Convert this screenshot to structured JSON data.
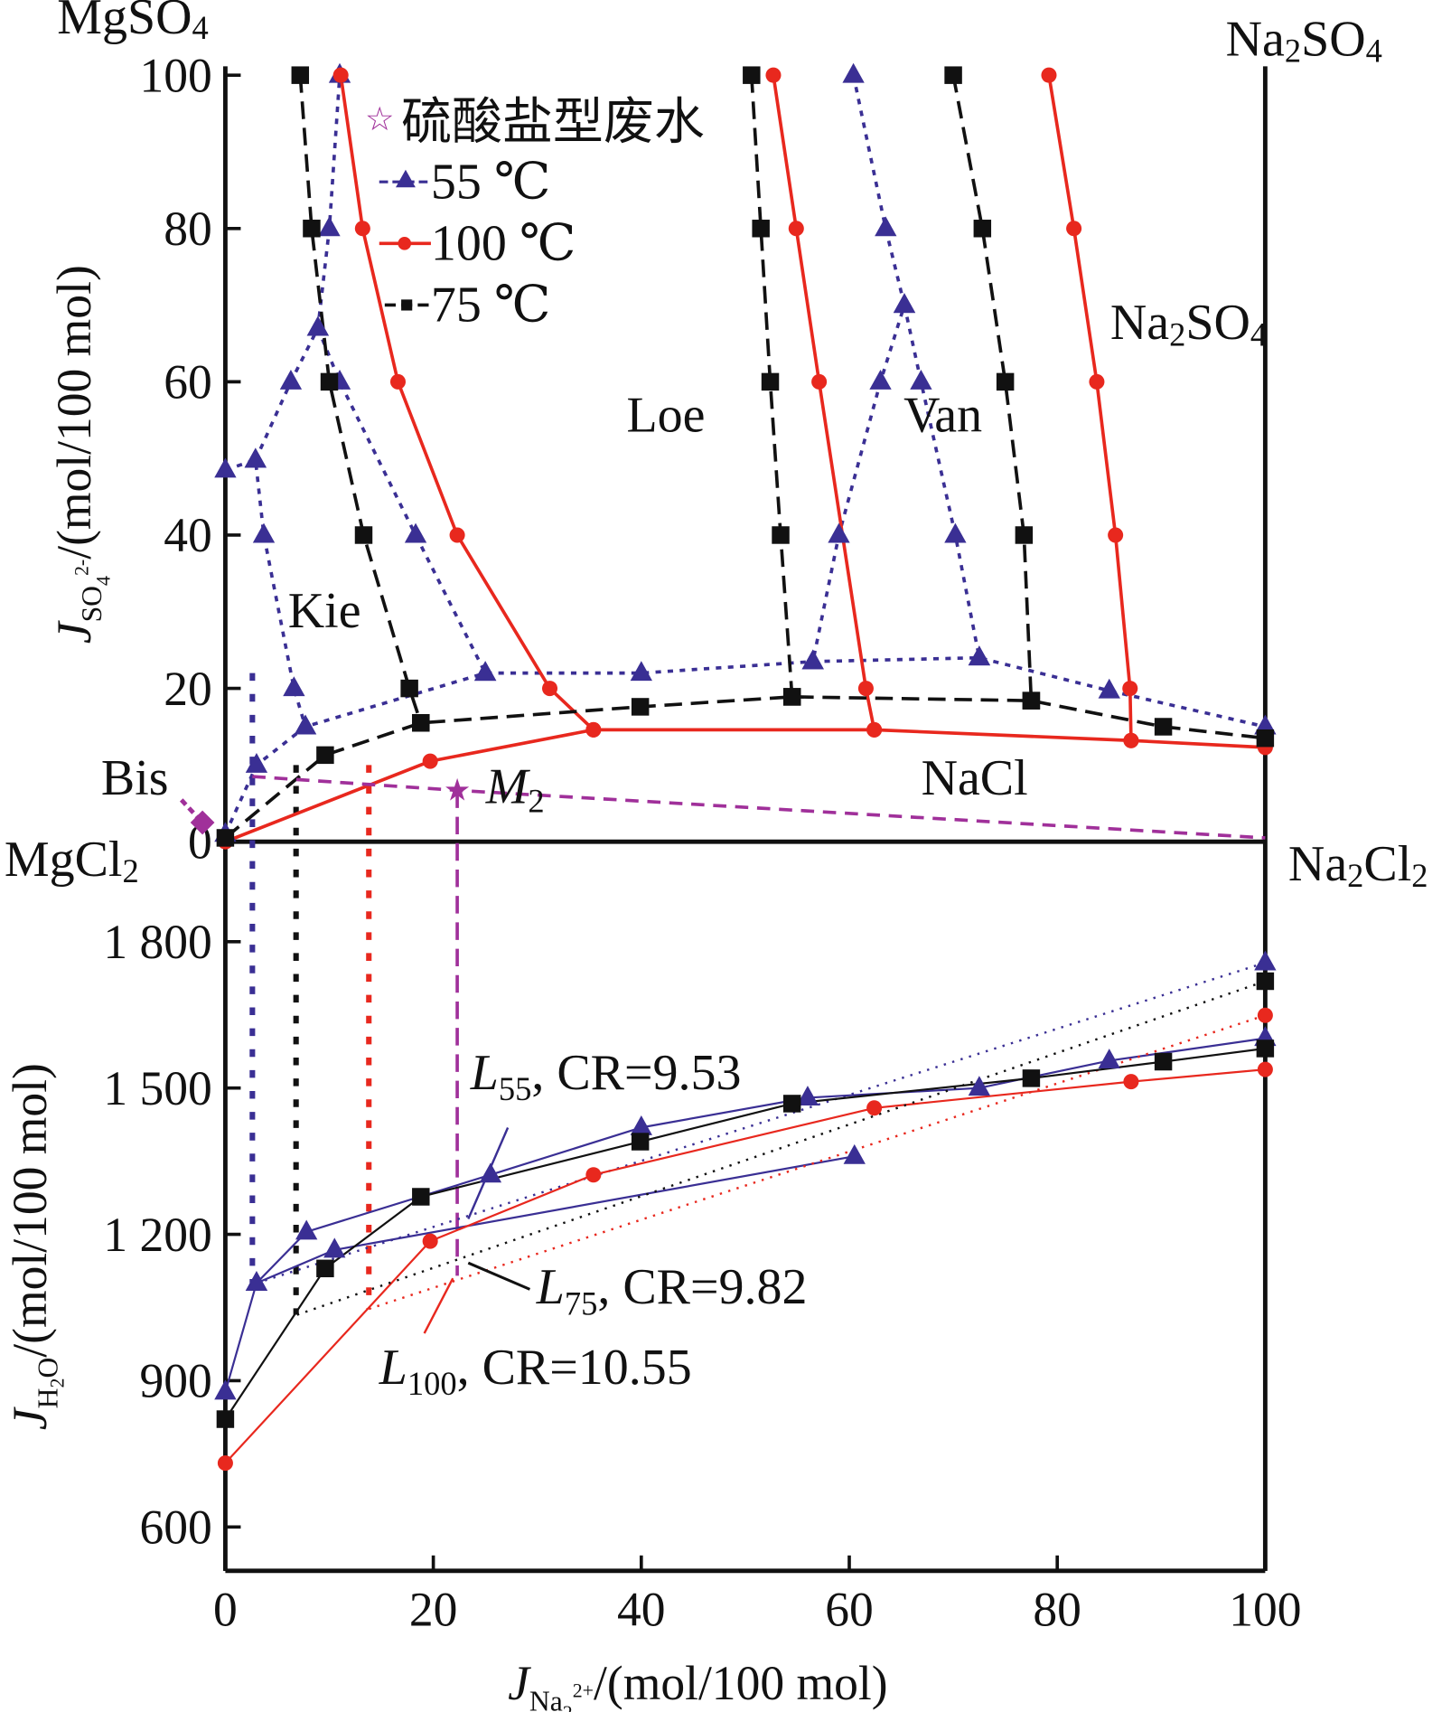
{
  "chart_data": {
    "type": "line",
    "corner_labels": {
      "top_left": {
        "base": "MgSO",
        "sub": "4"
      },
      "top_right": {
        "base": "Na",
        "sub": "2",
        "rest": "SO",
        "sub2": "4"
      },
      "mid_left": {
        "base": "MgCl",
        "sub": "2"
      },
      "mid_right": {
        "base": "Na",
        "sub": "2",
        "rest": "Cl",
        "sub2": "2"
      }
    },
    "region_labels": {
      "loe": "Loe",
      "van": "Van",
      "kie": "Kie",
      "nacl": "NaCl",
      "bis": "Bis",
      "na2so4": {
        "base": "Na",
        "sub": "2",
        "rest": "SO",
        "sub2": "4"
      },
      "m2": {
        "base": "M",
        "sub": "2"
      }
    },
    "x_axis": {
      "label": {
        "base": "J",
        "sub": "Na",
        "sub_sub": "2",
        "sup": "2+",
        "rest": "/(mol/100 mol)"
      },
      "range": [
        0,
        100
      ],
      "ticks": [
        "0",
        "20",
        "40",
        "60",
        "80",
        "100"
      ]
    },
    "top_panel": {
      "y_label": {
        "base": "J",
        "sub": "SO",
        "sub_sub": "4",
        "sup": "2-",
        "rest": "/(mol/100 mol)"
      },
      "y_range": [
        0,
        100
      ],
      "y_ticks": [
        "0",
        "20",
        "40",
        "60",
        "80",
        "100"
      ]
    },
    "bottom_panel": {
      "y_label": {
        "base": "J",
        "sub": "H",
        "sub_sub": "2",
        "rest2": "O",
        "rest": "/(mol/100 mol)"
      },
      "y_range": [
        510,
        2005
      ],
      "y_ticks": [
        "600",
        "900",
        "1 200",
        "1 500",
        "1 800"
      ]
    },
    "legend": {
      "position": "top-left",
      "wastewater": "硫酸盐型废水",
      "entries": [
        "55 ℃",
        "100 ℃",
        "75 ℃"
      ]
    },
    "series": [
      {
        "name": "55 ℃",
        "color": "#3a2f94",
        "marker": "triangle",
        "style": "dotted",
        "top_lines": [
          [
            [
              0,
              1
            ],
            [
              3,
              10
            ],
            [
              7.7,
              15
            ],
            [
              25,
              22
            ],
            [
              40,
              22
            ],
            [
              56.5,
              23.5
            ],
            [
              72.5,
              24
            ],
            [
              85,
              19.7
            ],
            [
              100,
              15
            ]
          ],
          [
            [
              0,
              48.5
            ],
            [
              2.9,
              49.8
            ],
            [
              3.7,
              40
            ],
            [
              6.6,
              20
            ],
            [
              7.7,
              15
            ]
          ],
          [
            [
              2.9,
              49.8
            ],
            [
              6.3,
              60
            ],
            [
              8.9,
              67
            ],
            [
              10,
              80
            ],
            [
              11,
              100
            ]
          ],
          [
            [
              8.9,
              67
            ],
            [
              11,
              60
            ],
            [
              18.3,
              40
            ],
            [
              25,
              22
            ]
          ],
          [
            [
              60.4,
              100
            ],
            [
              63.5,
              80
            ],
            [
              65.3,
              70
            ],
            [
              63,
              60
            ],
            [
              59,
              40
            ],
            [
              56.5,
              23.5
            ]
          ],
          [
            [
              65.3,
              70
            ],
            [
              66.9,
              60
            ],
            [
              70.2,
              40
            ],
            [
              72.5,
              24
            ]
          ]
        ],
        "bottom_lines": [
          [
            [
              0,
              877
            ],
            [
              3,
              1100
            ],
            [
              7.8,
              1205
            ],
            [
              25.5,
              1322
            ],
            [
              40,
              1419
            ],
            [
              56,
              1480
            ],
            [
              72.5,
              1500
            ],
            [
              85,
              1556
            ],
            [
              100,
              1602
            ]
          ],
          [
            [
              3,
              1100
            ],
            [
              10.5,
              1168
            ],
            [
              60.5,
              1360
            ]
          ]
        ],
        "bottom_tie": [
          [
            3,
            1100
          ],
          [
            100,
            1757
          ]
        ],
        "projection_x": 2.6
      },
      {
        "name": "100 ℃",
        "color": "#e8281e",
        "marker": "circle",
        "style": "solid",
        "top_lines": [
          [
            [
              11.1,
              100
            ],
            [
              13.2,
              80
            ],
            [
              16.6,
              60
            ],
            [
              22.3,
              40
            ],
            [
              31.2,
              20
            ],
            [
              35.4,
              14.6
            ]
          ],
          [
            [
              0,
              0
            ],
            [
              19.7,
              10.5
            ],
            [
              35.4,
              14.6
            ],
            [
              62.4,
              14.6
            ],
            [
              87.1,
              13.2
            ],
            [
              100,
              12.3
            ]
          ],
          [
            [
              52.7,
              100
            ],
            [
              54.9,
              80
            ],
            [
              57.1,
              60
            ],
            [
              61.6,
              20
            ],
            [
              62.4,
              14.6
            ]
          ],
          [
            [
              79.2,
              100
            ],
            [
              81.6,
              80
            ],
            [
              83.8,
              60
            ],
            [
              85.6,
              40
            ],
            [
              87,
              20
            ],
            [
              87.1,
              13.2
            ]
          ]
        ],
        "bottom_lines": [
          [
            [
              0,
              731
            ],
            [
              19.7,
              1186
            ],
            [
              35.4,
              1322
            ],
            [
              62.4,
              1459
            ],
            [
              87.1,
              1513
            ],
            [
              100,
              1538
            ]
          ]
        ],
        "bottom_tie": [
          [
            13.8,
            1047
          ],
          [
            100,
            1649
          ]
        ],
        "projection_x": 13.8
      },
      {
        "name": "75 ℃",
        "color": "#111111",
        "marker": "square",
        "style": "dashed",
        "top_lines": [
          [
            [
              7.2,
              100
            ],
            [
              8.3,
              80
            ],
            [
              10,
              60
            ],
            [
              13.3,
              40
            ],
            [
              17.7,
              20
            ],
            [
              18.8,
              15.5
            ]
          ],
          [
            [
              0,
              0.5
            ],
            [
              9.6,
              11.3
            ],
            [
              18.8,
              15.5
            ],
            [
              39.9,
              17.6
            ],
            [
              54.5,
              18.9
            ],
            [
              77.5,
              18.4
            ],
            [
              90.2,
              15
            ],
            [
              100,
              13.5
            ]
          ],
          [
            [
              50.6,
              100
            ],
            [
              51.5,
              80
            ],
            [
              52.4,
              60
            ],
            [
              53.4,
              40
            ],
            [
              54.5,
              18.9
            ]
          ],
          [
            [
              70,
              100
            ],
            [
              72.8,
              80
            ],
            [
              75,
              60
            ],
            [
              76.8,
              40
            ],
            [
              77.5,
              18.4
            ]
          ]
        ],
        "bottom_lines": [
          [
            [
              0,
              821
            ],
            [
              9.6,
              1130
            ],
            [
              18.8,
              1277
            ],
            [
              39.9,
              1390
            ],
            [
              54.5,
              1468
            ],
            [
              77.5,
              1520
            ],
            [
              90.2,
              1554
            ],
            [
              100,
              1581
            ]
          ]
        ],
        "bottom_tie": [
          [
            6.9,
            1035
          ],
          [
            100,
            1719
          ]
        ],
        "projection_x": 6.8
      }
    ],
    "wastewater_line": {
      "color": "#a0309a",
      "points": [
        [
          2.6,
          8.5
        ],
        [
          22.3,
          6.7
        ],
        [
          100,
          0.5
        ]
      ],
      "m2": [
        22.3,
        6.7
      ],
      "bis": [
        -2.2,
        2.5
      ]
    },
    "annotations": [
      {
        "label": "L",
        "sub": "55",
        "text": ", CR=9.53",
        "color": "#3a2f94"
      },
      {
        "label": "L",
        "sub": "75",
        "text": ", CR=9.82",
        "color": "#111111"
      },
      {
        "label": "L",
        "sub": "100",
        "text": ", CR=10.55",
        "color": "#e8281e"
      }
    ]
  }
}
